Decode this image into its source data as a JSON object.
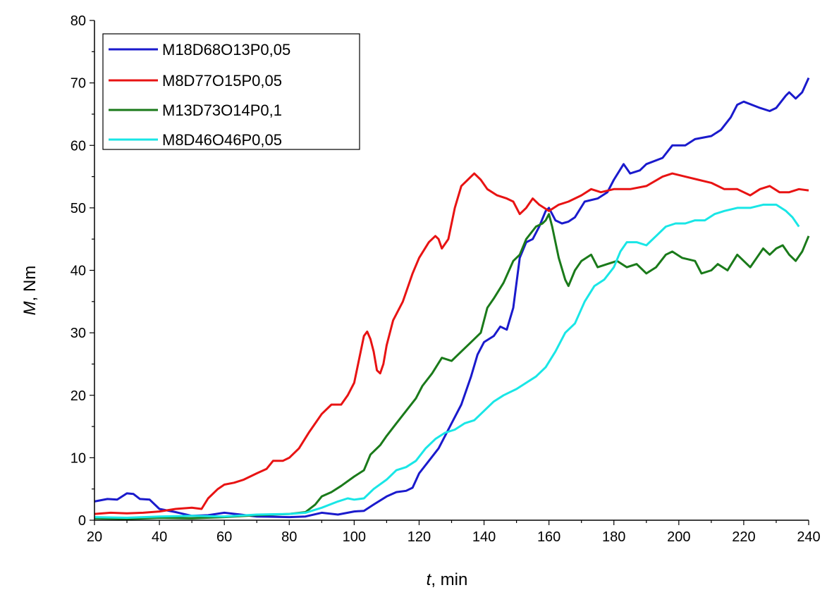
{
  "chart_data": {
    "type": "line",
    "xlabel": {
      "var": "t",
      "rest": ", min"
    },
    "ylabel": {
      "var": "M",
      "rest": ", Nm"
    },
    "xlim": [
      20,
      240
    ],
    "ylim": [
      0,
      80
    ],
    "xticks": [
      20,
      40,
      60,
      80,
      100,
      120,
      140,
      160,
      180,
      200,
      220,
      240
    ],
    "yticks": [
      0,
      10,
      20,
      30,
      40,
      50,
      60,
      70,
      80
    ],
    "grid": false,
    "legend_position": "top-left",
    "series": [
      {
        "name": "M18D68O13P0,05",
        "color": "#1a1acc",
        "points": [
          [
            20,
            3.0
          ],
          [
            24,
            3.4
          ],
          [
            27,
            3.3
          ],
          [
            30,
            4.3
          ],
          [
            32,
            4.2
          ],
          [
            34,
            3.4
          ],
          [
            37,
            3.3
          ],
          [
            40,
            1.8
          ],
          [
            45,
            1.3
          ],
          [
            50,
            0.7
          ],
          [
            55,
            0.8
          ],
          [
            60,
            1.2
          ],
          [
            65,
            0.9
          ],
          [
            70,
            0.6
          ],
          [
            80,
            0.5
          ],
          [
            85,
            0.6
          ],
          [
            90,
            1.2
          ],
          [
            95,
            0.9
          ],
          [
            100,
            1.4
          ],
          [
            103,
            1.5
          ],
          [
            106,
            2.5
          ],
          [
            110,
            3.8
          ],
          [
            113,
            4.5
          ],
          [
            116,
            4.7
          ],
          [
            118,
            5.2
          ],
          [
            120,
            7.5
          ],
          [
            123,
            9.5
          ],
          [
            126,
            11.5
          ],
          [
            130,
            15.5
          ],
          [
            133,
            18.5
          ],
          [
            136,
            23.0
          ],
          [
            138,
            26.5
          ],
          [
            140,
            28.5
          ],
          [
            143,
            29.5
          ],
          [
            145,
            31.0
          ],
          [
            147,
            30.5
          ],
          [
            149,
            34.0
          ],
          [
            151,
            42.0
          ],
          [
            153,
            44.5
          ],
          [
            155,
            45.0
          ],
          [
            157,
            47.0
          ],
          [
            159,
            49.5
          ],
          [
            160,
            50.0
          ],
          [
            162,
            48.0
          ],
          [
            164,
            47.5
          ],
          [
            166,
            47.8
          ],
          [
            168,
            48.5
          ],
          [
            171,
            51.0
          ],
          [
            175,
            51.5
          ],
          [
            178,
            52.5
          ],
          [
            180,
            54.5
          ],
          [
            183,
            57.0
          ],
          [
            185,
            55.5
          ],
          [
            188,
            56.0
          ],
          [
            190,
            57.0
          ],
          [
            195,
            58.0
          ],
          [
            198,
            60.0
          ],
          [
            202,
            60.0
          ],
          [
            205,
            61.0
          ],
          [
            210,
            61.5
          ],
          [
            213,
            62.5
          ],
          [
            216,
            64.5
          ],
          [
            218,
            66.5
          ],
          [
            220,
            67.0
          ],
          [
            225,
            66.0
          ],
          [
            228,
            65.5
          ],
          [
            230,
            66.0
          ],
          [
            233,
            68.0
          ],
          [
            234,
            68.5
          ],
          [
            236,
            67.5
          ],
          [
            238,
            68.5
          ],
          [
            240,
            70.8
          ]
        ]
      },
      {
        "name": "M8D77O15P0,05",
        "color": "#e81313",
        "points": [
          [
            20,
            1.0
          ],
          [
            25,
            1.2
          ],
          [
            30,
            1.1
          ],
          [
            35,
            1.2
          ],
          [
            40,
            1.4
          ],
          [
            45,
            1.8
          ],
          [
            50,
            2.0
          ],
          [
            53,
            1.8
          ],
          [
            55,
            3.5
          ],
          [
            58,
            5.0
          ],
          [
            60,
            5.7
          ],
          [
            63,
            6.0
          ],
          [
            66,
            6.5
          ],
          [
            70,
            7.5
          ],
          [
            73,
            8.2
          ],
          [
            75,
            9.5
          ],
          [
            78,
            9.5
          ],
          [
            80,
            10.0
          ],
          [
            83,
            11.5
          ],
          [
            86,
            14.0
          ],
          [
            88,
            15.5
          ],
          [
            90,
            17.0
          ],
          [
            93,
            18.5
          ],
          [
            96,
            18.5
          ],
          [
            98,
            20.0
          ],
          [
            100,
            22.0
          ],
          [
            102,
            27.0
          ],
          [
            103,
            29.5
          ],
          [
            104,
            30.2
          ],
          [
            105,
            29.0
          ],
          [
            106,
            27.0
          ],
          [
            107,
            24.0
          ],
          [
            108,
            23.5
          ],
          [
            109,
            25.0
          ],
          [
            110,
            28.0
          ],
          [
            112,
            32.0
          ],
          [
            115,
            35.0
          ],
          [
            118,
            39.5
          ],
          [
            120,
            42.0
          ],
          [
            123,
            44.5
          ],
          [
            125,
            45.5
          ],
          [
            126,
            45.0
          ],
          [
            127,
            43.5
          ],
          [
            129,
            45.0
          ],
          [
            131,
            50.0
          ],
          [
            133,
            53.5
          ],
          [
            135,
            54.5
          ],
          [
            137,
            55.5
          ],
          [
            139,
            54.5
          ],
          [
            141,
            53.0
          ],
          [
            144,
            52.0
          ],
          [
            147,
            51.5
          ],
          [
            149,
            51.0
          ],
          [
            151,
            49.0
          ],
          [
            153,
            50.0
          ],
          [
            155,
            51.5
          ],
          [
            157,
            50.5
          ],
          [
            160,
            49.5
          ],
          [
            163,
            50.5
          ],
          [
            166,
            51.0
          ],
          [
            170,
            52.0
          ],
          [
            173,
            53.0
          ],
          [
            176,
            52.5
          ],
          [
            180,
            53.0
          ],
          [
            185,
            53.0
          ],
          [
            190,
            53.5
          ],
          [
            195,
            55.0
          ],
          [
            198,
            55.5
          ],
          [
            202,
            55.0
          ],
          [
            206,
            54.5
          ],
          [
            210,
            54.0
          ],
          [
            214,
            53.0
          ],
          [
            218,
            53.0
          ],
          [
            222,
            52.0
          ],
          [
            225,
            53.0
          ],
          [
            228,
            53.5
          ],
          [
            231,
            52.5
          ],
          [
            234,
            52.5
          ],
          [
            237,
            53.0
          ],
          [
            240,
            52.8
          ]
        ]
      },
      {
        "name": "M13D73O14P0,1",
        "color": "#1a7a1a",
        "points": [
          [
            20,
            0.3
          ],
          [
            30,
            0.2
          ],
          [
            40,
            0.4
          ],
          [
            50,
            0.3
          ],
          [
            60,
            0.5
          ],
          [
            70,
            0.8
          ],
          [
            80,
            1.0
          ],
          [
            85,
            1.3
          ],
          [
            88,
            2.5
          ],
          [
            90,
            3.8
          ],
          [
            93,
            4.5
          ],
          [
            96,
            5.5
          ],
          [
            100,
            7.0
          ],
          [
            103,
            8.0
          ],
          [
            105,
            10.5
          ],
          [
            108,
            12.0
          ],
          [
            110,
            13.5
          ],
          [
            113,
            15.5
          ],
          [
            116,
            17.5
          ],
          [
            119,
            19.5
          ],
          [
            121,
            21.5
          ],
          [
            124,
            23.5
          ],
          [
            127,
            26.0
          ],
          [
            130,
            25.5
          ],
          [
            133,
            27.0
          ],
          [
            136,
            28.5
          ],
          [
            139,
            30.0
          ],
          [
            141,
            34.0
          ],
          [
            143,
            35.5
          ],
          [
            146,
            38.0
          ],
          [
            149,
            41.5
          ],
          [
            151,
            42.5
          ],
          [
            153,
            45.0
          ],
          [
            156,
            47.0
          ],
          [
            158,
            47.5
          ],
          [
            159,
            48.0
          ],
          [
            160,
            49.0
          ],
          [
            161,
            47.0
          ],
          [
            163,
            42.0
          ],
          [
            165,
            38.5
          ],
          [
            166,
            37.5
          ],
          [
            168,
            40.0
          ],
          [
            170,
            41.5
          ],
          [
            173,
            42.5
          ],
          [
            175,
            40.5
          ],
          [
            178,
            41.0
          ],
          [
            181,
            41.5
          ],
          [
            184,
            40.5
          ],
          [
            187,
            41.0
          ],
          [
            190,
            39.5
          ],
          [
            193,
            40.5
          ],
          [
            196,
            42.5
          ],
          [
            198,
            43.0
          ],
          [
            201,
            42.0
          ],
          [
            205,
            41.5
          ],
          [
            207,
            39.5
          ],
          [
            210,
            40.0
          ],
          [
            212,
            41.0
          ],
          [
            215,
            40.0
          ],
          [
            218,
            42.5
          ],
          [
            220,
            41.5
          ],
          [
            222,
            40.5
          ],
          [
            224,
            42.0
          ],
          [
            226,
            43.5
          ],
          [
            228,
            42.5
          ],
          [
            230,
            43.5
          ],
          [
            232,
            44.0
          ],
          [
            234,
            42.5
          ],
          [
            236,
            41.5
          ],
          [
            238,
            43.0
          ],
          [
            240,
            45.5
          ]
        ]
      },
      {
        "name": "M8D46O46P0,05",
        "color": "#19e6e6",
        "points": [
          [
            20,
            0.5
          ],
          [
            30,
            0.4
          ],
          [
            40,
            0.6
          ],
          [
            50,
            0.7
          ],
          [
            60,
            0.6
          ],
          [
            70,
            0.9
          ],
          [
            80,
            1.0
          ],
          [
            85,
            1.2
          ],
          [
            90,
            2.0
          ],
          [
            95,
            3.0
          ],
          [
            98,
            3.5
          ],
          [
            100,
            3.3
          ],
          [
            103,
            3.5
          ],
          [
            106,
            5.0
          ],
          [
            110,
            6.5
          ],
          [
            113,
            8.0
          ],
          [
            116,
            8.5
          ],
          [
            119,
            9.5
          ],
          [
            122,
            11.5
          ],
          [
            125,
            13.0
          ],
          [
            128,
            14.0
          ],
          [
            131,
            14.5
          ],
          [
            134,
            15.5
          ],
          [
            137,
            16.0
          ],
          [
            140,
            17.5
          ],
          [
            143,
            19.0
          ],
          [
            146,
            20.0
          ],
          [
            148,
            20.5
          ],
          [
            150,
            21.0
          ],
          [
            153,
            22.0
          ],
          [
            156,
            23.0
          ],
          [
            159,
            24.5
          ],
          [
            162,
            27.0
          ],
          [
            165,
            30.0
          ],
          [
            168,
            31.5
          ],
          [
            171,
            35.0
          ],
          [
            174,
            37.5
          ],
          [
            177,
            38.5
          ],
          [
            180,
            40.5
          ],
          [
            182,
            43.0
          ],
          [
            184,
            44.5
          ],
          [
            187,
            44.5
          ],
          [
            190,
            44.0
          ],
          [
            193,
            45.5
          ],
          [
            196,
            47.0
          ],
          [
            199,
            47.5
          ],
          [
            202,
            47.5
          ],
          [
            205,
            48.0
          ],
          [
            208,
            48.0
          ],
          [
            211,
            49.0
          ],
          [
            214,
            49.5
          ],
          [
            218,
            50.0
          ],
          [
            222,
            50.0
          ],
          [
            226,
            50.5
          ],
          [
            230,
            50.5
          ],
          [
            233,
            49.5
          ],
          [
            235,
            48.5
          ],
          [
            237,
            47.0
          ]
        ]
      }
    ]
  }
}
